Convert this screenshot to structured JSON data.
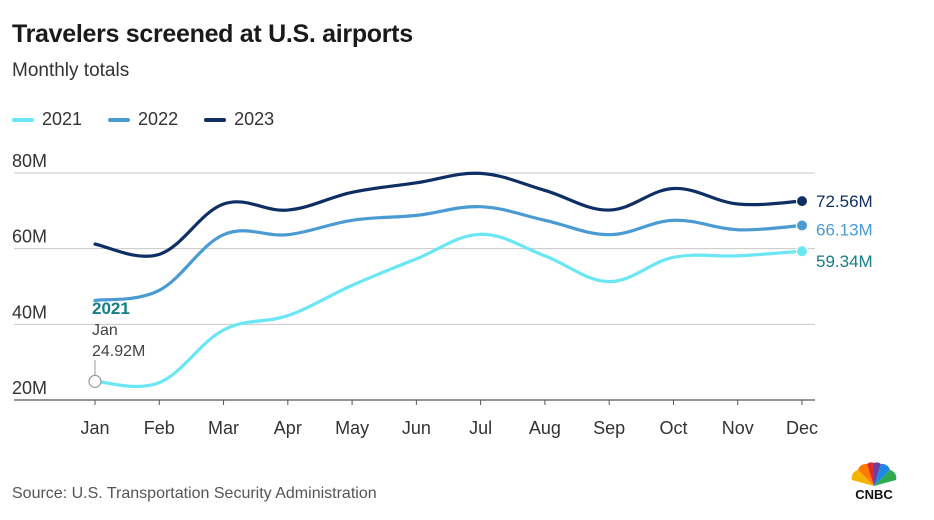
{
  "header": {
    "title": "Travelers screened at U.S. airports",
    "subtitle": "Monthly totals"
  },
  "footer": {
    "source": "Source: U.S. Transportation Security Administration",
    "logo_text": "CNBC"
  },
  "colors": {
    "2021": "#6be6f4",
    "2022": "#4a9ad4",
    "2023": "#0e2f63",
    "grid": "#c8c8c8",
    "annotation": "#137e84"
  },
  "annotation": {
    "year": "2021",
    "month": "Jan",
    "value": "24.92M"
  },
  "chart_data": {
    "type": "line",
    "title": "Travelers screened at U.S. airports",
    "subtitle": "Monthly totals",
    "xlabel": "",
    "ylabel": "",
    "categories": [
      "Jan",
      "Feb",
      "Mar",
      "Apr",
      "May",
      "Jun",
      "Jul",
      "Aug",
      "Sep",
      "Oct",
      "Nov",
      "Dec"
    ],
    "ylim": [
      20,
      80
    ],
    "yticks": [
      20,
      40,
      60,
      80
    ],
    "ytick_labels": [
      "20M",
      "40M",
      "60M",
      "80M"
    ],
    "grid": true,
    "legend_position": "top-left",
    "series": [
      {
        "name": "2021",
        "values": [
          24.92,
          24.6,
          38.5,
          42.3,
          50.3,
          57.3,
          63.8,
          58.1,
          51.3,
          57.7,
          58.1,
          59.34
        ],
        "end_label": "59.34M"
      },
      {
        "name": "2022",
        "values": [
          46.3,
          49.0,
          63.7,
          63.7,
          67.5,
          68.8,
          71.1,
          67.5,
          63.7,
          67.5,
          65.0,
          66.13
        ],
        "end_label": "66.13M"
      },
      {
        "name": "2023",
        "values": [
          61.2,
          58.5,
          71.8,
          70.2,
          74.9,
          77.4,
          79.9,
          75.4,
          70.2,
          75.9,
          71.8,
          72.56
        ],
        "end_label": "72.56M"
      }
    ]
  }
}
